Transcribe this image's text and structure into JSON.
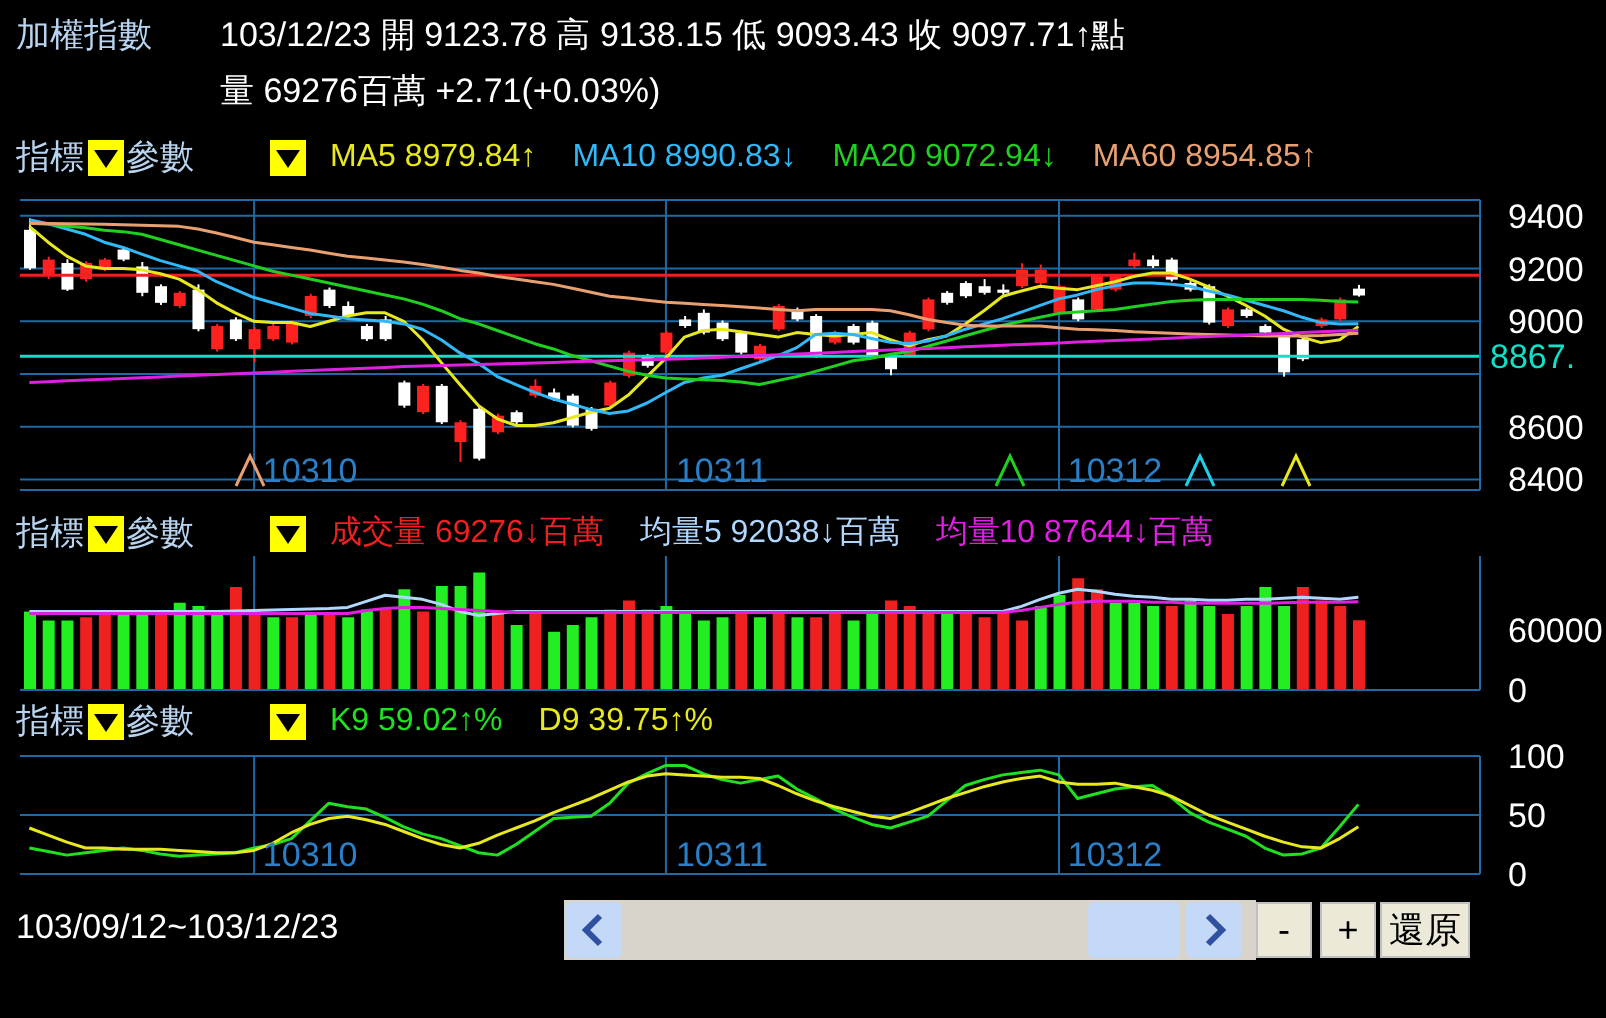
{
  "chart_data": [
    {
      "type": "candlestick",
      "title": "加權指數",
      "subtitle": "103/12/23 開 9123.78 高 9138.15 低 9093.43 收 9097.71↑點",
      "annotations": [
        "量 69276百萬 +2.71(+0.03%)",
        "指標",
        "參數"
      ],
      "categories": [
        null,
        null,
        null,
        null,
        null,
        null,
        null,
        null,
        null,
        null,
        null,
        null,
        null,
        null,
        null,
        "10310",
        null,
        null,
        null,
        null,
        null,
        null,
        null,
        null,
        null,
        null,
        null,
        null,
        null,
        null,
        null,
        null,
        null,
        null,
        null,
        null,
        null,
        "10311",
        null,
        null,
        null,
        null,
        null,
        null,
        null,
        null,
        null,
        null,
        null,
        null,
        null,
        null,
        null,
        null,
        null,
        null,
        null,
        null,
        "10312",
        null,
        null,
        null,
        null,
        null,
        null,
        null,
        null,
        null,
        null,
        null,
        null,
        null
      ],
      "ohlc": [
        [
          9347,
          9390,
          9195,
          9201
        ],
        [
          9171,
          9245,
          9160,
          9234
        ],
        [
          9221,
          9235,
          9115,
          9120
        ],
        [
          9160,
          9228,
          9150,
          9221
        ],
        [
          9196,
          9240,
          9190,
          9234
        ],
        [
          9272,
          9280,
          9228,
          9234
        ],
        [
          9208,
          9225,
          9095,
          9108
        ],
        [
          9133,
          9140,
          9062,
          9070
        ],
        [
          9058,
          9115,
          9050,
          9108
        ],
        [
          9120,
          9140,
          8962,
          8970
        ],
        [
          8894,
          8990,
          8885,
          8982
        ],
        [
          9007,
          9015,
          8925,
          8932
        ],
        [
          8894,
          8978,
          8844,
          8970
        ],
        [
          8932,
          8990,
          8925,
          8982
        ],
        [
          8919,
          9003,
          8912,
          8995
        ],
        [
          9020,
          9104,
          9012,
          9096
        ],
        [
          9120,
          9128,
          9050,
          9058
        ],
        [
          9058,
          9075,
          9012,
          9020
        ],
        [
          8982,
          8990,
          8925,
          8932
        ],
        [
          9007,
          9020,
          8925,
          8932
        ],
        [
          8768,
          8775,
          8672,
          8680
        ],
        [
          8655,
          8762,
          8648,
          8755
        ],
        [
          8755,
          8762,
          8610,
          8617
        ],
        [
          8542,
          8625,
          8466,
          8617
        ],
        [
          8668,
          8676,
          8472,
          8479
        ],
        [
          8579,
          8650,
          8572,
          8642
        ],
        [
          8655,
          8662,
          8610,
          8617
        ],
        [
          8718,
          8780,
          8710,
          8755
        ],
        [
          8730,
          8745,
          8698,
          8705
        ],
        [
          8718,
          8725,
          8597,
          8604
        ],
        [
          8668,
          8675,
          8585,
          8592
        ],
        [
          8680,
          8775,
          8673,
          8768
        ],
        [
          8793,
          8888,
          8786,
          8881
        ],
        [
          8869,
          8876,
          8824,
          8831
        ],
        [
          8881,
          8964,
          8874,
          8957
        ],
        [
          9007,
          9020,
          8975,
          8982
        ],
        [
          9032,
          9045,
          8950,
          8957
        ],
        [
          8995,
          9003,
          8925,
          8932
        ],
        [
          8957,
          8964,
          8874,
          8881
        ],
        [
          8856,
          8914,
          8849,
          8907
        ],
        [
          8969,
          9065,
          8962,
          9058
        ],
        [
          9045,
          9052,
          9000,
          9007
        ],
        [
          9020,
          9027,
          8862,
          8869
        ],
        [
          8919,
          8964,
          8912,
          8957
        ],
        [
          8982,
          8990,
          8912,
          8919
        ],
        [
          8995,
          9002,
          8862,
          8869
        ],
        [
          8869,
          8876,
          8795,
          8818
        ],
        [
          8869,
          8964,
          8862,
          8957
        ],
        [
          8969,
          9090,
          8962,
          9083
        ],
        [
          9108,
          9115,
          9063,
          9070
        ],
        [
          9145,
          9152,
          9088,
          9095
        ],
        [
          9133,
          9160,
          9101,
          9108
        ],
        [
          9120,
          9140,
          9101,
          9108
        ],
        [
          9133,
          9220,
          9126,
          9196
        ],
        [
          9145,
          9215,
          9138,
          9196
        ],
        [
          9032,
          9140,
          9025,
          9133
        ],
        [
          9083,
          9090,
          9000,
          9007
        ],
        [
          9045,
          9178,
          9038,
          9171
        ],
        [
          9120,
          9178,
          9113,
          9171
        ],
        [
          9209,
          9260,
          9202,
          9234
        ],
        [
          9234,
          9250,
          9202,
          9209
        ],
        [
          9234,
          9241,
          9151,
          9158
        ],
        [
          9145,
          9152,
          9113,
          9120
        ],
        [
          9133,
          9140,
          8988,
          8995
        ],
        [
          8982,
          9052,
          8975,
          9045
        ],
        [
          9045,
          9052,
          9013,
          9020
        ],
        [
          8982,
          8989,
          8950,
          8957
        ],
        [
          8944,
          8951,
          8790,
          8806
        ],
        [
          8932,
          8939,
          8849,
          8856
        ],
        [
          8982,
          9014,
          8975,
          9007
        ],
        [
          9007,
          9090,
          9000,
          9083
        ],
        [
          9123.78,
          9138.15,
          9093.43,
          9097.71
        ]
      ],
      "series": [
        {
          "name": "MA5 8979.84↑",
          "type": "line",
          "color": "#e8e820",
          "values": [
            9360,
            9300,
            9247,
            9210,
            9200,
            9200,
            9195,
            9180,
            9160,
            9120,
            9070,
            9032,
            9000,
            8995,
            8995,
            8980,
            9000,
            9020,
            9032,
            9032,
            9000,
            8930,
            8844,
            8760,
            8680,
            8630,
            8605,
            8605,
            8615,
            8635,
            8655,
            8670,
            8720,
            8790,
            8860,
            8940,
            8965,
            8970,
            8960,
            8950,
            8940,
            8957,
            8950,
            8944,
            8950,
            8957,
            8930,
            8907,
            8930,
            8944,
            8990,
            9040,
            9095,
            9115,
            9133,
            9125,
            9120,
            9135,
            9150,
            9170,
            9183,
            9183,
            9160,
            9130,
            9095,
            9060,
            9020,
            8970,
            8940,
            8919,
            8930,
            8980
          ]
        },
        {
          "name": "MA10 8990.83↓",
          "type": "line",
          "color": "#30b8f8",
          "values": [
            9385,
            9370,
            9350,
            9330,
            9300,
            9280,
            9255,
            9230,
            9210,
            9190,
            9150,
            9120,
            9090,
            9070,
            9050,
            9030,
            9020,
            9010,
            9005,
            9000,
            8990,
            8970,
            8930,
            8880,
            8840,
            8790,
            8760,
            8730,
            8705,
            8685,
            8665,
            8650,
            8660,
            8690,
            8730,
            8768,
            8785,
            8795,
            8820,
            8844,
            8870,
            8900,
            8950,
            8955,
            8950,
            8935,
            8920,
            8915,
            8925,
            8945,
            8970,
            8990,
            9010,
            9035,
            9060,
            9085,
            9100,
            9120,
            9135,
            9145,
            9145,
            9140,
            9133,
            9115,
            9100,
            9080,
            9060,
            9040,
            9015,
            8995,
            8990,
            8991
          ]
        },
        {
          "name": "MA20 9072.94↓",
          "type": "line",
          "color": "#20d020",
          "values": [
            9372,
            9368,
            9360,
            9355,
            9345,
            9340,
            9330,
            9310,
            9290,
            9270,
            9250,
            9230,
            9210,
            9190,
            9175,
            9160,
            9145,
            9130,
            9115,
            9100,
            9085,
            9065,
            9040,
            9010,
            8990,
            8965,
            8940,
            8915,
            8895,
            8870,
            8850,
            8830,
            8810,
            8795,
            8785,
            8781,
            8778,
            8775,
            8770,
            8760,
            8775,
            8790,
            8810,
            8830,
            8850,
            8860,
            8875,
            8885,
            8905,
            8925,
            8945,
            8965,
            8985,
            9000,
            9015,
            9030,
            9035,
            9040,
            9045,
            9055,
            9065,
            9075,
            9080,
            9083,
            9083,
            9083,
            9083,
            9083,
            9083,
            9080,
            9075,
            9073
          ]
        },
        {
          "name": "MA60 8954.85↑",
          "type": "line",
          "color": "#e8a070",
          "values": [
            9372,
            9371,
            9370,
            9369,
            9368,
            9366,
            9364,
            9362,
            9360,
            9350,
            9335,
            9318,
            9300,
            9290,
            9280,
            9270,
            9258,
            9247,
            9240,
            9232,
            9225,
            9215,
            9205,
            9193,
            9183,
            9170,
            9160,
            9150,
            9140,
            9125,
            9110,
            9095,
            9088,
            9080,
            9072,
            9068,
            9064,
            9060,
            9055,
            9050,
            9045,
            9040,
            9045,
            9045,
            9045,
            9045,
            9040,
            9025,
            9007,
            8995,
            8985,
            8982,
            8982,
            8982,
            8982,
            8975,
            8970,
            8968,
            8965,
            8960,
            8957,
            8955,
            8952,
            8950,
            8948,
            8946,
            8944,
            8944,
            8944,
            8946,
            8950,
            8955
          ]
        },
        {
          "type": "line",
          "color": "#e020e0",
          "values": [
            8768,
            8771,
            8774,
            8777,
            8780,
            8783,
            8786,
            8789,
            8792,
            8795,
            8798,
            8801,
            8804,
            8807,
            8810,
            8813,
            8816,
            8819,
            8822,
            8825,
            8828,
            8830,
            8832,
            8834,
            8836,
            8838,
            8840,
            8842,
            8844,
            8846,
            8848,
            8850,
            8852,
            8854,
            8856,
            8858,
            8861,
            8864,
            8867,
            8870,
            8873,
            8876,
            8879,
            8882,
            8885,
            8888,
            8891,
            8894,
            8897,
            8900,
            8903,
            8906,
            8909,
            8912,
            8915,
            8918,
            8921,
            8924,
            8927,
            8930,
            8933,
            8936,
            8939,
            8942,
            8945,
            8948,
            8951,
            8954,
            8957,
            8960,
            8963,
            8966
          ]
        }
      ],
      "ref_lines": [
        {
          "axis": "y",
          "value": 8867,
          "label": "8867.",
          "color": "#10e0c8"
        },
        {
          "axis": "y",
          "value": 9175,
          "color": "#ee2020"
        }
      ],
      "ylim": [
        8360,
        9460
      ],
      "yticks": [
        8400,
        8600,
        {
          "value": 8800,
          "label": null
        },
        9000,
        9200,
        9400
      ],
      "grid": true,
      "legend": "top"
    },
    {
      "type": "bar",
      "annotations": [
        "指標",
        "參數"
      ],
      "categories": [
        null,
        null,
        null,
        null,
        null,
        null,
        null,
        null,
        null,
        null,
        null,
        null,
        null,
        null,
        null,
        "10310",
        null,
        null,
        null,
        null,
        null,
        null,
        null,
        null,
        null,
        null,
        null,
        null,
        null,
        null,
        null,
        null,
        null,
        null,
        null,
        null,
        null,
        "10311",
        null,
        null,
        null,
        null,
        null,
        null,
        null,
        null,
        null,
        null,
        null,
        null,
        null,
        null,
        null,
        null,
        null,
        null,
        null,
        null,
        "10312",
        null,
        null,
        null,
        null,
        null,
        null,
        null,
        null,
        null,
        null,
        null,
        null,
        null
      ],
      "tick_labels": "y",
      "series": [
        {
          "name": "成交量 69276↓百萬",
          "color": "#ee2020",
          "colors": [
            "#22ee22",
            "#22ee22",
            "#22ee22",
            "#ee2020",
            "#ee2020",
            "#22ee22",
            "#22ee22",
            "#ee2020",
            "#22ee22",
            "#22ee22",
            "#22ee22",
            "#ee2020",
            "#ee2020",
            "#22ee22",
            "#ee2020",
            "#22ee22",
            "#ee2020",
            "#22ee22",
            "#22ee22",
            "#ee2020",
            "#22ee22",
            "#ee2020",
            "#22ee22",
            "#22ee22",
            "#22ee22",
            "#ee2020",
            "#22ee22",
            "#ee2020",
            "#22ee22",
            "#22ee22",
            "#22ee22",
            "#ee2020",
            "#ee2020",
            "#ee2020",
            "#22ee22",
            "#22ee22",
            "#22ee22",
            "#22ee22",
            "#ee2020",
            "#22ee22",
            "#ee2020",
            "#22ee22",
            "#ee2020",
            "#ee2020",
            "#22ee22",
            "#22ee22",
            "#ee2020",
            "#ee2020",
            "#ee2020",
            "#22ee22",
            "#ee2020",
            "#ee2020",
            "#ee2020",
            "#ee2020",
            "#22ee22",
            "#22ee22",
            "#ee2020",
            "#ee2020",
            "#22ee22",
            "#22ee22",
            "#22ee22",
            "#ee2020",
            "#22ee22",
            "#22ee22",
            "#ee2020",
            "#22ee22",
            "#22ee22",
            "#22ee22",
            "#ee2020",
            "#ee2020",
            "#ee2020",
            "#ee2020"
          ],
          "values": [
            77800,
            69000,
            69000,
            72200,
            74400,
            75500,
            77800,
            77800,
            86700,
            83300,
            77800,
            102200,
            77800,
            72200,
            72200,
            75500,
            75500,
            72200,
            80000,
            80000,
            100000,
            77800,
            103300,
            103300,
            116600,
            77800,
            64400,
            77800,
            57800,
            64400,
            72200,
            80000,
            88900,
            80000,
            83300,
            77800,
            69000,
            72200,
            77800,
            72200,
            77800,
            72200,
            72200,
            77800,
            69000,
            75500,
            88900,
            83300,
            77800,
            77800,
            77800,
            72200,
            77800,
            69000,
            83300,
            94400,
            111000,
            100000,
            86700,
            86700,
            83300,
            83300,
            88900,
            83300,
            75500,
            83300,
            102200,
            83300,
            102200,
            88900,
            83300,
            69276
          ]
        },
        {
          "name": "均量5 92038↓百萬",
          "type": "line",
          "color": "#b0d8ff",
          "values": [
            77800,
            77800,
            77800,
            77800,
            77800,
            77800,
            77800,
            77800,
            77800,
            77800,
            78000,
            78500,
            79000,
            79500,
            80000,
            80500,
            81000,
            82000,
            88000,
            94000,
            92000,
            90000,
            85000,
            78000,
            74000,
            76000,
            78000,
            78000,
            78000,
            78000,
            78000,
            78000,
            78000,
            78000,
            78000,
            78000,
            78000,
            78000,
            78000,
            78000,
            78000,
            78000,
            78000,
            78000,
            78000,
            78000,
            78000,
            78000,
            78000,
            78000,
            78000,
            78000,
            78000,
            83000,
            90000,
            96000,
            100000,
            98000,
            95000,
            93000,
            92000,
            90000,
            90000,
            89000,
            89000,
            90000,
            90000,
            91000,
            92000,
            91000,
            90000,
            92038
          ]
        },
        {
          "name": "均量10 87644↓百萬",
          "type": "line",
          "color": "#e020e0",
          "values": [
            76000,
            76000,
            76000,
            76000,
            76000,
            76000,
            76000,
            76000,
            76000,
            76000,
            76000,
            76000,
            76000,
            76000,
            76000,
            76000,
            76000,
            76000,
            79000,
            81000,
            82000,
            82000,
            81000,
            80000,
            79000,
            78000,
            77000,
            77000,
            77000,
            77000,
            77000,
            77000,
            77000,
            77000,
            77000,
            77000,
            77000,
            77000,
            77000,
            77000,
            77000,
            77000,
            77000,
            77000,
            77000,
            77000,
            77000,
            77000,
            77000,
            77000,
            77000,
            77000,
            77000,
            79000,
            82000,
            85000,
            87000,
            88000,
            88000,
            88000,
            87000,
            87000,
            86000,
            86000,
            86000,
            86000,
            86000,
            86500,
            87000,
            87000,
            87200,
            87644
          ]
        }
      ],
      "ylim": [
        0,
        133000
      ],
      "yticks": [
        0,
        60000
      ],
      "grid": "x",
      "legend": "top"
    },
    {
      "type": "line",
      "annotations": [
        "指標",
        "參數",
        "103/09/12~103/12/23",
        "-",
        "+",
        "還原"
      ],
      "categories": [
        null,
        null,
        null,
        null,
        null,
        null,
        null,
        null,
        null,
        null,
        null,
        null,
        null,
        null,
        null,
        "10310",
        null,
        null,
        null,
        null,
        null,
        null,
        null,
        null,
        null,
        null,
        null,
        null,
        null,
        null,
        null,
        null,
        null,
        null,
        null,
        null,
        null,
        "10311",
        null,
        null,
        null,
        null,
        null,
        null,
        null,
        null,
        null,
        null,
        null,
        null,
        null,
        null,
        null,
        null,
        null,
        null,
        null,
        null,
        "10312",
        null,
        null,
        null,
        null,
        null,
        null,
        null,
        null,
        null,
        null,
        null,
        null,
        null
      ],
      "series": [
        {
          "name": "K9 59.02↑%",
          "color": "#20e020",
          "values": [
            22,
            19,
            16,
            18,
            20,
            22,
            20,
            17,
            15,
            16,
            17,
            18,
            22,
            25,
            30,
            45,
            60,
            57,
            55,
            48,
            40,
            34,
            30,
            24,
            18,
            16,
            25,
            36,
            47,
            48,
            49,
            60,
            77,
            85,
            92,
            92,
            85,
            80,
            77,
            80,
            83,
            72,
            64,
            55,
            48,
            42,
            39,
            44,
            49,
            62,
            75,
            80,
            84,
            86,
            88,
            84,
            64,
            68,
            72,
            74,
            75,
            65,
            52,
            44,
            38,
            32,
            22,
            16,
            17,
            22,
            40,
            59
          ]
        },
        {
          "name": "D9 39.75↑%",
          "color": "#e8e820",
          "values": [
            39,
            33,
            27,
            22,
            22,
            21,
            21,
            21,
            20,
            19,
            18,
            18,
            20,
            26,
            35,
            42,
            47,
            49,
            46,
            42,
            36,
            30,
            25,
            22,
            26,
            33,
            39,
            45,
            52,
            58,
            64,
            71,
            78,
            83,
            85,
            84,
            83,
            82,
            82,
            81,
            75,
            68,
            62,
            57,
            53,
            49,
            47,
            52,
            58,
            64,
            69,
            74,
            78,
            81,
            83,
            78,
            76,
            76,
            77,
            74,
            71,
            66,
            58,
            50,
            44,
            38,
            32,
            27,
            23,
            22,
            30,
            40
          ]
        }
      ],
      "ylim": [
        0,
        100
      ],
      "yticks": [
        0,
        50,
        100
      ],
      "grid": true,
      "legend": "top left"
    }
  ]
}
